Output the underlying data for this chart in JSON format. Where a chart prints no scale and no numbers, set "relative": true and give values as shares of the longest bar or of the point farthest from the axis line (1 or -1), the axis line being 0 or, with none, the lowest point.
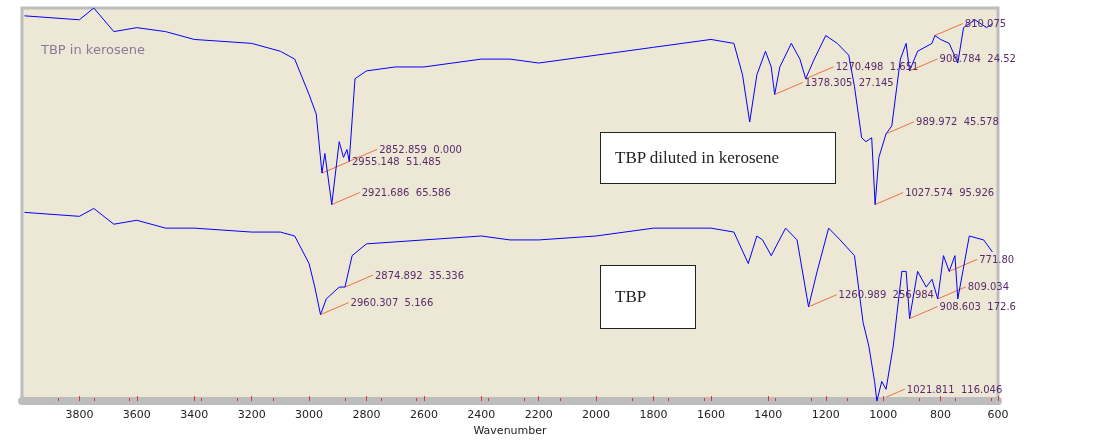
{
  "chart_data": {
    "type": "line",
    "title": "TBP in kerosene",
    "xlabel": "Wavenumber",
    "relative": true,
    "xlim": [
      4000,
      600
    ],
    "xticks": [
      3800,
      3600,
      3400,
      3200,
      3000,
      2800,
      2600,
      2400,
      2200,
      2000,
      1800,
      1600,
      1400,
      1200,
      1000,
      800,
      600
    ],
    "grid": false,
    "marker": "none",
    "line_style": "solid",
    "series": [
      {
        "color": "#0000ff",
        "x": [
          3990,
          3800,
          3750,
          3680,
          3600,
          3500,
          3400,
          3200,
          3100,
          3050,
          3000,
          2975,
          2955,
          2945,
          2921,
          2895,
          2880,
          2868,
          2860,
          2840,
          2800,
          2700,
          2600,
          2500,
          2400,
          2370,
          2300,
          2200,
          2000,
          1800,
          1700,
          1600,
          1520,
          1490,
          1465,
          1440,
          1410,
          1390,
          1378,
          1360,
          1320,
          1290,
          1270,
          1240,
          1200,
          1160,
          1120,
          1100,
          1075,
          1060,
          1040,
          1028,
          1015,
          990,
          970,
          940,
          920,
          908,
          880,
          830,
          820,
          800,
          770,
          740,
          720,
          680,
          640,
          620
        ],
        "values": [
          0.98,
          0.97,
          1,
          0.94,
          0.95,
          0.94,
          0.92,
          0.91,
          0.89,
          0.87,
          0.78,
          0.73,
          0.58,
          0.63,
          0.5,
          0.66,
          0.62,
          0.64,
          0.61,
          0.82,
          0.84,
          0.85,
          0.85,
          0.86,
          0.87,
          0.87,
          0.87,
          0.86,
          0.88,
          0.9,
          0.91,
          0.92,
          0.91,
          0.83,
          0.71,
          0.83,
          0.89,
          0.85,
          0.78,
          0.85,
          0.91,
          0.87,
          0.82,
          0.87,
          0.93,
          0.91,
          0.88,
          0.8,
          0.67,
          0.66,
          0.67,
          0.5,
          0.62,
          0.68,
          0.7,
          0.87,
          0.91,
          0.84,
          0.89,
          0.91,
          0.93,
          0.92,
          0.91,
          0.86,
          0.95,
          0.97,
          0.95,
          0.96
        ]
      },
      {
        "color": "#0000ff",
        "x": [
          3990,
          3800,
          3750,
          3680,
          3600,
          3500,
          3400,
          3200,
          3100,
          3050,
          3000,
          2980,
          2960,
          2940,
          2910,
          2895,
          2875,
          2850,
          2800,
          2600,
          2400,
          2300,
          2200,
          2000,
          1800,
          1600,
          1520,
          1470,
          1440,
          1420,
          1390,
          1340,
          1300,
          1260,
          1230,
          1190,
          1150,
          1100,
          1070,
          1050,
          1030,
          1022,
          1005,
          990,
          965,
          935,
          920,
          908,
          880,
          850,
          830,
          810,
          790,
          770,
          750,
          740,
          700,
          650,
          620
        ],
        "values": [
          0.48,
          0.47,
          0.49,
          0.45,
          0.46,
          0.44,
          0.44,
          0.43,
          0.43,
          0.42,
          0.35,
          0.29,
          0.22,
          0.26,
          0.28,
          0.29,
          0.29,
          0.37,
          0.4,
          0.41,
          0.42,
          0.41,
          0.41,
          0.42,
          0.44,
          0.44,
          0.43,
          0.35,
          0.42,
          0.41,
          0.37,
          0.44,
          0.41,
          0.24,
          0.33,
          0.44,
          0.41,
          0.37,
          0.2,
          0.14,
          0.05,
          0,
          0.05,
          0.03,
          0.14,
          0.33,
          0.33,
          0.21,
          0.33,
          0.29,
          0.31,
          0.26,
          0.37,
          0.33,
          0.37,
          0.26,
          0.42,
          0.41,
          0.38
        ]
      }
    ],
    "annotations": [
      {
        "text": "2852.859  0.000",
        "x": 2860,
        "y": 0.61
      },
      {
        "text": "2955.148  51.485",
        "x": 2955,
        "y": 0.58
      },
      {
        "text": "2921.686  65.586",
        "x": 2921,
        "y": 0.5
      },
      {
        "text": "1378.305  27.145",
        "x": 1378,
        "y": 0.78
      },
      {
        "text": "1270.498  1.651",
        "x": 1270,
        "y": 0.82
      },
      {
        "text": "810.075",
        "x": 820,
        "y": 0.93
      },
      {
        "text": "908.784  24.52",
        "x": 908,
        "y": 0.84
      },
      {
        "text": "989.972  45.578",
        "x": 990,
        "y": 0.68
      },
      {
        "text": "1027.574  95.926",
        "x": 1028,
        "y": 0.5
      },
      {
        "text": "2874.892  35.336",
        "x": 2875,
        "y": 0.29
      },
      {
        "text": "2960.307  5.166",
        "x": 2960,
        "y": 0.22
      },
      {
        "text": "1260.989  256.984",
        "x": 1260,
        "y": 0.24
      },
      {
        "text": "771.80",
        "x": 770,
        "y": 0.33
      },
      {
        "text": "809.034",
        "x": 810,
        "y": 0.26
      },
      {
        "text": "908.603  172.6",
        "x": 908,
        "y": 0.21
      },
      {
        "text": "1021.811  116.046",
        "x": 1022,
        "y": 0
      },
      "TBP diluted in kerosene",
      "TBP"
    ]
  }
}
